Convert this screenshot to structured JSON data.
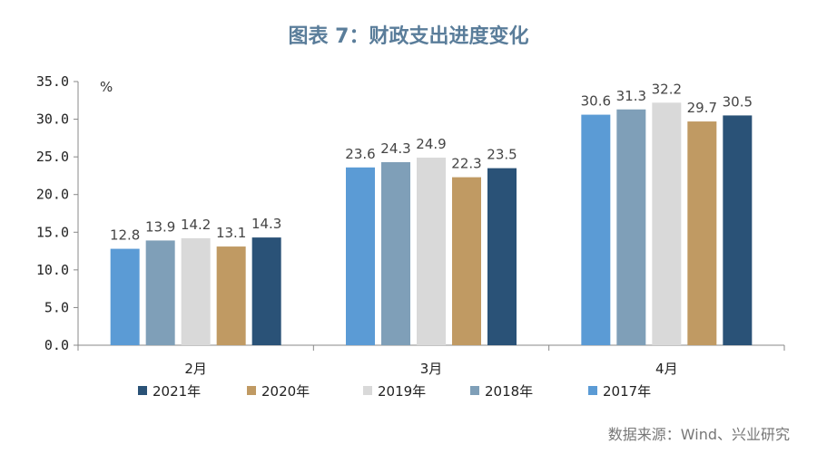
{
  "title": "图表 7：财政支出进度变化",
  "source": "数据来源：Wind、兴业研究",
  "chart_data": {
    "type": "bar",
    "unit": "%",
    "categories": [
      "2月",
      "3月",
      "4月"
    ],
    "ylim": [
      0,
      35
    ],
    "yticks": [
      "0.0",
      "5.0",
      "10.0",
      "15.0",
      "20.0",
      "25.0",
      "30.0",
      "35.0"
    ],
    "grid": false,
    "legend_position": "bottom",
    "bar_order": [
      "2017年",
      "2018年",
      "2019年",
      "2020年",
      "2021年"
    ],
    "legend_order": [
      "2021年",
      "2020年",
      "2019年",
      "2018年",
      "2017年"
    ],
    "series": [
      {
        "name": "2017年",
        "color": "#5b9bd5",
        "values": [
          12.8,
          23.6,
          30.6
        ]
      },
      {
        "name": "2018年",
        "color": "#7f9fb8",
        "values": [
          13.9,
          24.3,
          31.3
        ]
      },
      {
        "name": "2019年",
        "color": "#d9d9d9",
        "values": [
          14.2,
          24.9,
          32.2
        ]
      },
      {
        "name": "2020年",
        "color": "#c09a63",
        "values": [
          13.1,
          22.3,
          29.7
        ]
      },
      {
        "name": "2021年",
        "color": "#2a5277",
        "values": [
          14.3,
          23.5,
          30.5
        ]
      }
    ]
  }
}
